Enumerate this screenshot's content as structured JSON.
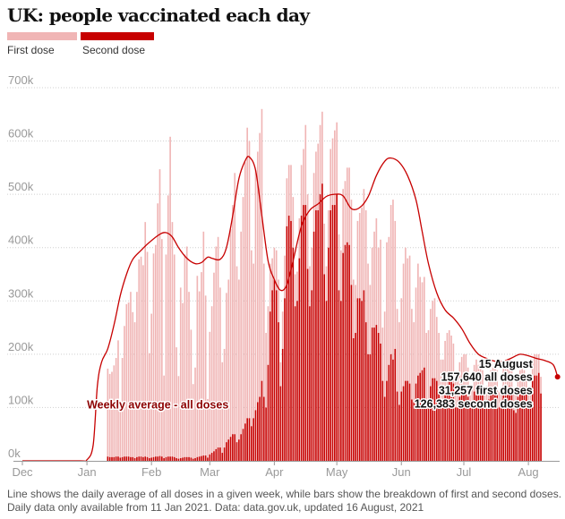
{
  "title": "UK: people vaccinated each day",
  "legend": [
    {
      "label": "First dose",
      "color": "#f0b5b5"
    },
    {
      "label": "Second dose",
      "color": "#c70000"
    }
  ],
  "footnote": [
    "Line shows the daily average of all doses in a given week, while bars show the breakdown of first and second doses.",
    "Daily data only available from 11 Jan 2021. Data: data.gov.uk, updated 16 August, 2021"
  ],
  "colors": {
    "first": "#f0b5b5",
    "second": "#c70000",
    "line": "#c70000",
    "grid": "#cfcfcf",
    "axis": "#999999"
  },
  "chart_data": {
    "type": "bar",
    "x_axis": {
      "range": [
        "2020-12-01",
        "2021-08-16"
      ],
      "ticks": [
        {
          "label": "Dec",
          "date": "2020-12-01"
        },
        {
          "label": "Jan",
          "date": "2021-01-01"
        },
        {
          "label": "Feb",
          "date": "2021-02-01"
        },
        {
          "label": "Mar",
          "date": "2021-03-01"
        },
        {
          "label": "Apr",
          "date": "2021-04-01"
        },
        {
          "label": "May",
          "date": "2021-05-01"
        },
        {
          "label": "Jun",
          "date": "2021-06-01"
        },
        {
          "label": "Jul",
          "date": "2021-07-01"
        },
        {
          "label": "Aug",
          "date": "2021-08-01"
        }
      ]
    },
    "y_axis": {
      "range": [
        0,
        700000
      ],
      "ticks": [
        {
          "label": "0k",
          "value": 0
        },
        {
          "label": "100k",
          "value": 100000
        },
        {
          "label": "200k",
          "value": 200000
        },
        {
          "label": "300k",
          "value": 300000
        },
        {
          "label": "400k",
          "value": 400000
        },
        {
          "label": "500k",
          "value": 500000
        },
        {
          "label": "600k",
          "value": 600000
        },
        {
          "label": "700k",
          "value": 700000
        }
      ],
      "grid": true
    },
    "bars_start_date": "2021-01-11",
    "series": [
      {
        "name": "First dose",
        "type": "bar",
        "stacked_on": "Second dose",
        "values": [
          165000,
          156000,
          160000,
          172000,
          185000,
          218000,
          100000,
          186000,
          245000,
          286000,
          289000,
          310000,
          272000,
          255000,
          310000,
          370000,
          375000,
          360000,
          440000,
          385000,
          197000,
          270000,
          382000,
          397000,
          475000,
          538000,
          408000,
          155000,
          380000,
          490000,
          600000,
          440000,
          380000,
          208000,
          155000,
          320000,
          290000,
          380000,
          395000,
          310000,
          240000,
          140000,
          170000,
          340000,
          310000,
          345000,
          420000,
          300000,
          110000,
          230000,
          275000,
          335000,
          380000,
          395000,
          300000,
          170000,
          185000,
          280000,
          300000,
          390000,
          430000,
          490000,
          330000,
          300000,
          380000,
          435000,
          490000,
          545000,
          520000,
          330000,
          290000,
          450000,
          470000,
          495000,
          510000,
          250000,
          140000,
          110000,
          90000,
          60000,
          60000,
          75000,
          80000,
          45000,
          70000,
          80000,
          90000,
          95000,
          105000,
          95000,
          60000,
          55000,
          75000,
          95000,
          105000,
          150000,
          140000,
          75000,
          80000,
          110000,
          110000,
          125000,
          130000,
          135000,
          95000,
          65000,
          70000,
          115000,
          125000,
          140000,
          135000,
          105000,
          95000,
          120000,
          120000,
          140000,
          145000,
          160000,
          110000,
          90000,
          145000,
          160000,
          175000,
          190000,
          210000,
          170000,
          130000,
          150000,
          180000,
          200000,
          160000,
          195000,
          100000,
          160000,
          260000,
          240000,
          280000,
          300000,
          240000,
          155000,
          155000,
          175000,
          230000,
          250000,
          230000,
          240000,
          170000,
          150000,
          180000,
          210000,
          180000,
          165000,
          170000,
          130000,
          140000,
          145000,
          145000,
          150000,
          120000,
          110000,
          90000,
          90000,
          95000,
          100000,
          95000,
          85000,
          75000,
          55000,
          55000,
          65000,
          65000,
          65000,
          65000,
          55000,
          40000,
          40000,
          50000,
          50000,
          45000,
          50000,
          40000,
          30000,
          40000,
          45000,
          45000,
          45000,
          50000,
          40000,
          30000,
          35000,
          45000,
          45000,
          45000,
          50000,
          40000,
          30000,
          35000,
          35000,
          40000,
          40000,
          35000,
          35000,
          25000,
          30000,
          40000,
          40000,
          40000,
          35000,
          31257
        ]
      },
      {
        "name": "Second dose",
        "type": "bar",
        "values": [
          8000,
          7000,
          7000,
          7000,
          8000,
          8000,
          6000,
          7000,
          8000,
          8000,
          8000,
          7000,
          7000,
          5000,
          7000,
          8000,
          8000,
          7000,
          8000,
          7000,
          5000,
          6000,
          7000,
          8000,
          8000,
          9000,
          8000,
          5000,
          7000,
          8000,
          8000,
          8000,
          7000,
          5000,
          4000,
          5000,
          6000,
          7000,
          7000,
          7000,
          6000,
          4000,
          5000,
          7000,
          8000,
          9000,
          10000,
          10000,
          6000,
          12000,
          15000,
          18000,
          22000,
          25000,
          25000,
          15000,
          25000,
          35000,
          40000,
          45000,
          50000,
          50000,
          35000,
          40000,
          50000,
          60000,
          70000,
          80000,
          80000,
          65000,
          80000,
          95000,
          110000,
          120000,
          150000,
          120000,
          100000,
          180000,
          280000,
          320000,
          340000,
          320000,
          260000,
          140000,
          210000,
          305000,
          440000,
          460000,
          450000,
          400000,
          290000,
          300000,
          380000,
          460000,
          480000,
          480000,
          360000,
          290000,
          320000,
          430000,
          470000,
          470000,
          500000,
          520000,
          350000,
          300000,
          400000,
          470000,
          480000,
          480000,
          500000,
          320000,
          300000,
          390000,
          405000,
          410000,
          405000,
          330000,
          230000,
          240000,
          305000,
          305000,
          300000,
          320000,
          260000,
          200000,
          200000,
          250000,
          250000,
          255000,
          240000,
          220000,
          150000,
          120000,
          150000,
          180000,
          200000,
          190000,
          210000,
          130000,
          105000,
          130000,
          140000,
          150000,
          150000,
          145000,
          115000,
          110000,
          145000,
          160000,
          165000,
          170000,
          175000,
          110000,
          105000,
          140000,
          155000,
          155000,
          150000,
          130000,
          100000,
          100000,
          130000,
          140000,
          150000,
          150000,
          145000,
          100000,
          100000,
          120000,
          130000,
          135000,
          135000,
          120000,
          100000,
          100000,
          130000,
          140000,
          135000,
          140000,
          130000,
          100000,
          100000,
          115000,
          125000,
          130000,
          135000,
          130000,
          100000,
          100000,
          130000,
          135000,
          130000,
          140000,
          130000,
          95000,
          90000,
          120000,
          130000,
          135000,
          135000,
          125000,
          100000,
          110000,
          150000,
          160000,
          160000,
          165000,
          126383
        ]
      },
      {
        "name": "Weekly average - all doses",
        "type": "line",
        "points": [
          [
            "2020-12-01",
            0
          ],
          [
            "2020-12-28",
            0
          ],
          [
            "2021-01-01",
            2000
          ],
          [
            "2021-01-04",
            30000
          ],
          [
            "2021-01-06",
            140000
          ],
          [
            "2021-01-08",
            185000
          ],
          [
            "2021-01-11",
            210000
          ],
          [
            "2021-01-14",
            255000
          ],
          [
            "2021-01-17",
            310000
          ],
          [
            "2021-01-20",
            350000
          ],
          [
            "2021-01-23",
            378000
          ],
          [
            "2021-01-27",
            395000
          ],
          [
            "2021-01-31",
            410000
          ],
          [
            "2021-02-05",
            425000
          ],
          [
            "2021-02-08",
            428000
          ],
          [
            "2021-02-11",
            420000
          ],
          [
            "2021-02-14",
            400000
          ],
          [
            "2021-02-18",
            380000
          ],
          [
            "2021-02-22",
            370000
          ],
          [
            "2021-02-25",
            372000
          ],
          [
            "2021-02-28",
            382000
          ],
          [
            "2021-03-02",
            380000
          ],
          [
            "2021-03-06",
            378000
          ],
          [
            "2021-03-09",
            400000
          ],
          [
            "2021-03-12",
            460000
          ],
          [
            "2021-03-15",
            530000
          ],
          [
            "2021-03-18",
            563000
          ],
          [
            "2021-03-20",
            570000
          ],
          [
            "2021-03-23",
            545000
          ],
          [
            "2021-03-26",
            460000
          ],
          [
            "2021-03-29",
            375000
          ],
          [
            "2021-04-01",
            340000
          ],
          [
            "2021-04-04",
            320000
          ],
          [
            "2021-04-07",
            330000
          ],
          [
            "2021-04-10",
            375000
          ],
          [
            "2021-04-14",
            440000
          ],
          [
            "2021-04-18",
            470000
          ],
          [
            "2021-04-22",
            482000
          ],
          [
            "2021-04-26",
            496000
          ],
          [
            "2021-04-30",
            500000
          ],
          [
            "2021-05-04",
            497000
          ],
          [
            "2021-05-08",
            473000
          ],
          [
            "2021-05-12",
            475000
          ],
          [
            "2021-05-16",
            495000
          ],
          [
            "2021-05-20",
            535000
          ],
          [
            "2021-05-24",
            562000
          ],
          [
            "2021-05-27",
            568000
          ],
          [
            "2021-05-31",
            560000
          ],
          [
            "2021-06-04",
            535000
          ],
          [
            "2021-06-08",
            490000
          ],
          [
            "2021-06-11",
            430000
          ],
          [
            "2021-06-14",
            370000
          ],
          [
            "2021-06-18",
            315000
          ],
          [
            "2021-06-22",
            283000
          ],
          [
            "2021-06-26",
            268000
          ],
          [
            "2021-06-30",
            248000
          ],
          [
            "2021-07-04",
            220000
          ],
          [
            "2021-07-08",
            200000
          ],
          [
            "2021-07-12",
            192000
          ],
          [
            "2021-07-16",
            187000
          ],
          [
            "2021-07-20",
            187000
          ],
          [
            "2021-07-24",
            193000
          ],
          [
            "2021-07-28",
            200000
          ],
          [
            "2021-08-01",
            197000
          ],
          [
            "2021-08-05",
            192000
          ],
          [
            "2021-08-09",
            188000
          ],
          [
            "2021-08-13",
            180000
          ],
          [
            "2021-08-15",
            157640
          ]
        ]
      }
    ],
    "annotations": [
      {
        "name": "line-label",
        "text": "Weekly average - all doses",
        "x": "2021-01-01",
        "y": 98000,
        "anchor": "start"
      },
      {
        "name": "latest-date",
        "text": "15 August",
        "x": "2021-08-03",
        "y": 175000,
        "anchor": "end"
      },
      {
        "name": "latest-all",
        "text": "157,640 all doses",
        "x": "2021-08-03",
        "y": 150000,
        "anchor": "end"
      },
      {
        "name": "latest-first",
        "text": "31,257 first doses",
        "x": "2021-08-03",
        "y": 125000,
        "anchor": "end"
      },
      {
        "name": "latest-second",
        "text": "126,383 second doses",
        "x": "2021-08-03",
        "y": 100000,
        "anchor": "end"
      }
    ],
    "highlight_point": {
      "x": "2021-08-15",
      "y": 157640
    },
    "legend_position": "top-left"
  }
}
